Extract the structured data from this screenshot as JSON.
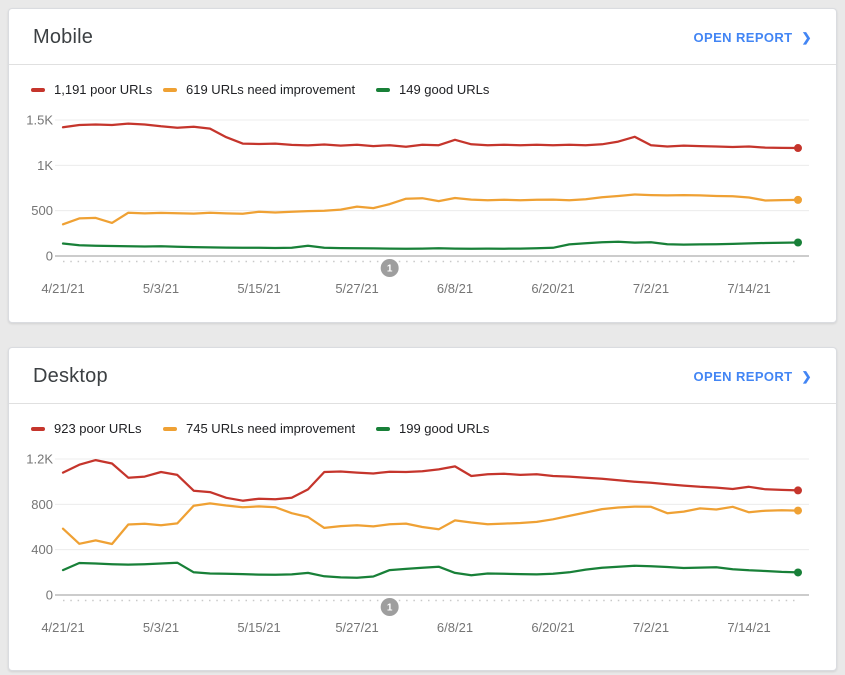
{
  "ui": {
    "background_color": "#e9e9e9",
    "card_background_color": "#ffffff",
    "link_color": "#4285f4",
    "annotation_badge_color": "#9e9e9e",
    "icons": {
      "chevron_right": "❯"
    }
  },
  "cards": [
    {
      "title": "Mobile",
      "open_report_label": "OPEN REPORT",
      "legend": [
        {
          "label": "1,191 poor URLs"
        },
        {
          "label": "619 URLs need improvement"
        },
        {
          "label": "149 good URLs"
        }
      ]
    },
    {
      "title": "Desktop",
      "open_report_label": "OPEN REPORT",
      "legend": [
        {
          "label": "923 poor URLs"
        },
        {
          "label": "745 URLs need improvement"
        },
        {
          "label": "199 good URLs"
        }
      ]
    }
  ],
  "chart_data": [
    {
      "type": "line",
      "title": "Mobile",
      "ylim": [
        0,
        1500
      ],
      "total_days": 90,
      "sample_interval_days": 2,
      "grid": true,
      "legend_position": "top",
      "y_ticks": [
        {
          "label": "1.5K",
          "value": 1500
        },
        {
          "label": "1K",
          "value": 1000
        },
        {
          "label": "500",
          "value": 500
        },
        {
          "label": "0",
          "value": 0
        }
      ],
      "x_ticks": [
        {
          "label": "4/21/21",
          "day": 0
        },
        {
          "label": "5/3/21",
          "day": 12
        },
        {
          "label": "5/15/21",
          "day": 24
        },
        {
          "label": "5/27/21",
          "day": 36
        },
        {
          "label": "6/8/21",
          "day": 48
        },
        {
          "label": "6/20/21",
          "day": 60
        },
        {
          "label": "7/2/21",
          "day": 72
        },
        {
          "label": "7/14/21",
          "day": 84
        }
      ],
      "annotation_marker": {
        "label": "1",
        "day": 40
      },
      "series": [
        {
          "key": "poor",
          "name": "poor URLs",
          "count": 1191,
          "color": "#c5352c",
          "values": [
            1420,
            1445,
            1450,
            1445,
            1460,
            1450,
            1430,
            1415,
            1425,
            1405,
            1310,
            1240,
            1235,
            1240,
            1225,
            1220,
            1230,
            1218,
            1228,
            1212,
            1222,
            1205,
            1228,
            1222,
            1282,
            1232,
            1222,
            1228,
            1222,
            1228,
            1222,
            1228,
            1222,
            1232,
            1262,
            1315,
            1222,
            1208,
            1218,
            1212,
            1208,
            1202,
            1208,
            1196,
            1192,
            1191
          ]
        },
        {
          "key": "need-improvement",
          "name": "URLs need improvement",
          "count": 619,
          "color": "#efa134",
          "values": [
            350,
            415,
            420,
            365,
            478,
            470,
            475,
            472,
            468,
            478,
            470,
            465,
            488,
            480,
            488,
            495,
            500,
            512,
            545,
            528,
            572,
            632,
            638,
            605,
            640,
            622,
            615,
            620,
            615,
            620,
            622,
            615,
            625,
            648,
            662,
            678,
            672,
            668,
            672,
            668,
            662,
            658,
            645,
            612,
            616,
            619
          ]
        },
        {
          "key": "good",
          "name": "good URLs",
          "count": 149,
          "color": "#188038",
          "values": [
            138,
            118,
            112,
            110,
            107,
            105,
            108,
            102,
            98,
            95,
            93,
            90,
            92,
            88,
            90,
            112,
            92,
            87,
            85,
            84,
            82,
            80,
            82,
            85,
            82,
            80,
            82,
            80,
            82,
            85,
            90,
            128,
            140,
            152,
            158,
            148,
            152,
            130,
            126,
            128,
            130,
            134,
            139,
            143,
            147,
            149
          ]
        }
      ]
    },
    {
      "type": "line",
      "title": "Desktop",
      "ylim": [
        0,
        1200
      ],
      "total_days": 90,
      "sample_interval_days": 2,
      "grid": true,
      "legend_position": "top",
      "y_ticks": [
        {
          "label": "1.2K",
          "value": 1200
        },
        {
          "label": "800",
          "value": 800
        },
        {
          "label": "400",
          "value": 400
        },
        {
          "label": "0",
          "value": 0
        }
      ],
      "x_ticks": [
        {
          "label": "4/21/21",
          "day": 0
        },
        {
          "label": "5/3/21",
          "day": 12
        },
        {
          "label": "5/15/21",
          "day": 24
        },
        {
          "label": "5/27/21",
          "day": 36
        },
        {
          "label": "6/8/21",
          "day": 48
        },
        {
          "label": "6/20/21",
          "day": 60
        },
        {
          "label": "7/2/21",
          "day": 72
        },
        {
          "label": "7/14/21",
          "day": 84
        }
      ],
      "annotation_marker": {
        "label": "1",
        "day": 40
      },
      "series": [
        {
          "key": "poor",
          "name": "poor URLs",
          "count": 923,
          "color": "#c5352c",
          "values": [
            1080,
            1150,
            1190,
            1160,
            1035,
            1045,
            1085,
            1060,
            920,
            908,
            858,
            832,
            850,
            845,
            858,
            932,
            1085,
            1090,
            1080,
            1072,
            1088,
            1085,
            1092,
            1108,
            1135,
            1050,
            1065,
            1070,
            1060,
            1065,
            1050,
            1045,
            1035,
            1025,
            1012,
            1000,
            990,
            978,
            965,
            955,
            948,
            935,
            955,
            933,
            927,
            923
          ]
        },
        {
          "key": "need-improvement",
          "name": "URLs need improvement",
          "count": 745,
          "color": "#efa134",
          "values": [
            585,
            452,
            482,
            450,
            622,
            628,
            615,
            632,
            788,
            808,
            790,
            775,
            782,
            775,
            722,
            688,
            592,
            608,
            615,
            605,
            625,
            630,
            600,
            580,
            658,
            640,
            625,
            630,
            635,
            645,
            668,
            698,
            728,
            758,
            772,
            780,
            778,
            722,
            736,
            764,
            754,
            778,
            730,
            744,
            748,
            745
          ]
        },
        {
          "key": "good",
          "name": "good URLs",
          "count": 199,
          "color": "#188038",
          "values": [
            220,
            282,
            278,
            272,
            268,
            272,
            278,
            285,
            200,
            190,
            187,
            184,
            180,
            178,
            182,
            195,
            165,
            155,
            152,
            163,
            220,
            230,
            240,
            250,
            195,
            175,
            190,
            187,
            184,
            182,
            188,
            200,
            224,
            240,
            250,
            258,
            254,
            247,
            238,
            242,
            244,
            228,
            218,
            212,
            204,
            199
          ]
        }
      ]
    }
  ]
}
